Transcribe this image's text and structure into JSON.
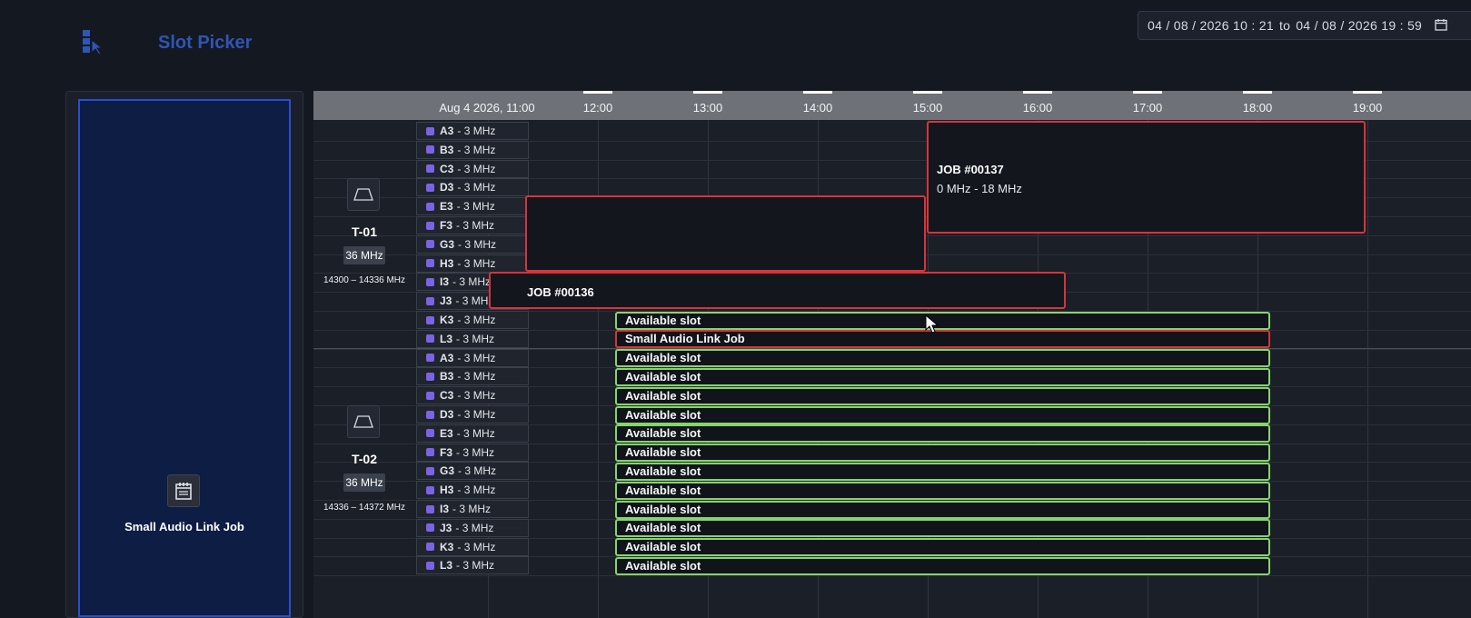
{
  "app": {
    "title": "Slot Picker",
    "icon": "cursor-grid-icon"
  },
  "date_range": {
    "from": "04 / 08 / 2026  10 : 21",
    "sep": "to",
    "to": "04 / 08 / 2026  19 : 59",
    "icon": "calendar-icon"
  },
  "left_panel": {
    "job_label": "Small Audio Link Job",
    "job_icon": "job-card-icon"
  },
  "timeline": {
    "start_label": "Aug 4 2026, 11:00",
    "hours": [
      "12:00",
      "13:00",
      "14:00",
      "15:00",
      "16:00",
      "17:00",
      "18:00",
      "19:00"
    ]
  },
  "transmitters": [
    {
      "name": "T-01",
      "bandwidth": "36 MHz",
      "range": "14300 – 14336 MHz",
      "icon": "transponder-icon",
      "channels": [
        "A3",
        "B3",
        "C3",
        "D3",
        "E3",
        "F3",
        "G3",
        "H3",
        "I3",
        "J3",
        "K3",
        "L3"
      ]
    },
    {
      "name": "T-02",
      "bandwidth": "36 MHz",
      "range": "14336 – 14372 MHz",
      "icon": "transponder-icon",
      "channels": [
        "A3",
        "B3",
        "C3",
        "D3",
        "E3",
        "F3",
        "G3",
        "H3",
        "I3",
        "J3",
        "K3",
        "L3"
      ]
    }
  ],
  "channel_bw": "3 MHz",
  "jobs": {
    "job137": {
      "title": "JOB #00137",
      "range": "0 MHz - 18 MHz"
    },
    "job136": {
      "title": "JOB #00136"
    }
  },
  "slots": {
    "available": "Available slot",
    "selected": "Small Audio Link Job"
  },
  "colors": {
    "accent": "#2f55b5",
    "job_border": "#d7343b",
    "slot_border": "#86d46d",
    "channel_dot": "#7b63e6"
  }
}
